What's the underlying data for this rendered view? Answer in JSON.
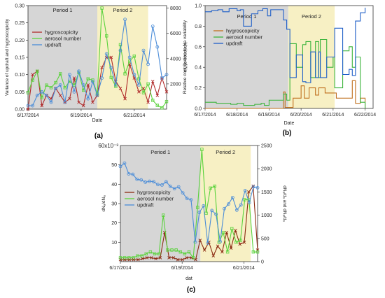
{
  "chart_data": [
    {
      "type": "line",
      "panel_label": "(a)",
      "xlabel": "Date",
      "ylabel": "Variance of updraft and hygroscopicity",
      "ylabel_right": "Variance of Na",
      "x_ticks": [
        "6/17/2014",
        "6/19/2014",
        "6/21/2014"
      ],
      "x_range": [
        0,
        30
      ],
      "x_tick_positions": [
        0,
        11.5,
        23
      ],
      "ylim": [
        0,
        0.3
      ],
      "y_ticks": [
        "0.00",
        "0.05",
        "0.10",
        "0.15",
        "0.20",
        "0.25",
        "0.30"
      ],
      "ylim_right": [
        0,
        8200
      ],
      "y_ticks_right": [
        "2000",
        "4000",
        "6000",
        "8000"
      ],
      "periods": [
        {
          "label": "Period 1",
          "start": 0,
          "end": 15,
          "color": "#d6d6d6"
        },
        {
          "label": "Period 2",
          "start": 15,
          "end": 26,
          "color": "#f7f0c4"
        }
      ],
      "legend_position": "left",
      "series": [
        {
          "name": "hygroscopicity",
          "color": "#b02a2a",
          "marker": "x",
          "axis": "left",
          "values": [
            0.0,
            0.1,
            0.11,
            0.01,
            0.04,
            0.03,
            0.06,
            0.04,
            0.02,
            0.03,
            0.09,
            0.02,
            0.01,
            0.07,
            0.02,
            0.04,
            0.12,
            0.15,
            0.15,
            0.08,
            0.06,
            0.03,
            0.13,
            0.09,
            0.05,
            0.06,
            0.02,
            0.08,
            0.04,
            0.09,
            0.05
          ]
        },
        {
          "name": "aerosol number",
          "color": "#5ad23c",
          "marker": "square",
          "axis": "right",
          "values": [
            1300,
            2300,
            3000,
            900,
            1900,
            1700,
            2100,
            2800,
            1700,
            2200,
            1900,
            2900,
            1500,
            2400,
            2300,
            1200,
            8000,
            5800,
            2500,
            1800,
            5100,
            2800,
            3800,
            4200,
            2400,
            1300,
            2000,
            700,
            300,
            100,
            600
          ]
        },
        {
          "name": "updraft",
          "color": "#4a8cd8",
          "marker": "circle",
          "axis": "left",
          "values": [
            0.01,
            0.01,
            0.04,
            0.05,
            0.04,
            0.02,
            0.06,
            0.07,
            0.02,
            0.1,
            0.05,
            0.11,
            0.07,
            0.03,
            0.08,
            0.04,
            0.09,
            0.16,
            0.12,
            0.07,
            0.17,
            0.26,
            0.15,
            0.1,
            0.07,
            0.17,
            0.13,
            0.24,
            0.18,
            0.09,
            0.1
          ]
        }
      ]
    },
    {
      "type": "line",
      "panel_label": "(b)",
      "xlabel": "Date",
      "ylabel": "Relative contribution to Na variability",
      "x_ticks": [
        "6/17/2014",
        "6/18/2014",
        "6/19/2014",
        "6/20/2014",
        "6/21/2014",
        "6/22/2014"
      ],
      "x_range": [
        0,
        5.25
      ],
      "x_tick_positions": [
        0,
        1,
        2,
        3,
        4,
        5
      ],
      "ylim": [
        0,
        1.0
      ],
      "y_ticks": [
        "0.0",
        "0.2",
        "0.4",
        "0.6",
        "0.8",
        "1.0"
      ],
      "periods": [
        {
          "label": "Period 1",
          "start": 0,
          "end": 2.6,
          "color": "#d6d6d6"
        },
        {
          "label": "Period 2",
          "start": 2.6,
          "end": 4.05,
          "color": "#f7f0c4"
        }
      ],
      "legend_position": "top-left",
      "series": [
        {
          "name": "hygroscopicity",
          "color": "#c0701e",
          "x": [
            0,
            2.3,
            2.45,
            2.5,
            2.75,
            3.0,
            3.1,
            3.25,
            3.45,
            3.55,
            3.75,
            4.1,
            4.3,
            4.6,
            4.7,
            4.85,
            5.0
          ],
          "values": [
            0.0,
            0.0,
            0.16,
            0.01,
            0.1,
            0.22,
            0.1,
            0.2,
            0.13,
            0.2,
            0.15,
            0.1,
            0.1,
            0.27,
            0.05,
            0.1,
            0.0
          ]
        },
        {
          "name": "aerosol number",
          "color": "#3cb43c",
          "x": [
            0,
            0.35,
            0.8,
            1.0,
            1.2,
            1.55,
            1.75,
            1.85,
            2.0,
            2.45,
            2.55,
            2.65,
            2.85,
            3.05,
            3.15,
            3.3,
            3.45,
            3.55,
            3.6,
            3.8,
            4.0,
            4.05,
            4.3,
            4.5,
            4.6,
            4.7,
            4.85,
            5.0
          ],
          "values": [
            0.06,
            0.05,
            0.04,
            0.05,
            0.03,
            0.04,
            0.05,
            0.03,
            0.08,
            0.14,
            0.08,
            0.63,
            0.4,
            0.62,
            0.65,
            0.3,
            0.65,
            0.3,
            0.67,
            0.4,
            0.5,
            0.2,
            0.56,
            0.6,
            0.4,
            0.5,
            0.06,
            0.0
          ]
        },
        {
          "name": "updraft",
          "color": "#1f5fc8",
          "x": [
            0,
            0.2,
            0.4,
            0.55,
            0.75,
            1.0,
            1.1,
            1.2,
            1.45,
            1.65,
            1.8,
            1.95,
            2.05,
            2.45,
            2.55,
            2.65,
            2.85,
            3.05,
            3.15,
            3.3,
            3.45,
            3.55,
            3.6,
            3.8,
            4.0,
            4.05,
            4.3,
            4.5,
            4.6,
            4.7,
            4.85,
            5.0
          ],
          "values": [
            0.94,
            0.95,
            0.96,
            0.94,
            0.97,
            0.95,
            0.96,
            0.8,
            0.92,
            0.95,
            0.97,
            0.9,
            0.96,
            0.86,
            0.77,
            0.3,
            0.52,
            0.26,
            0.25,
            0.55,
            0.3,
            0.55,
            0.3,
            0.5,
            0.5,
            0.78,
            0.33,
            0.38,
            0.32,
            0.85,
            0.93,
            0.98
          ]
        }
      ]
    },
    {
      "type": "line",
      "panel_label": "(c)",
      "xlabel": "dat",
      "ylabel": "dNₐ/dNₐ",
      "y_scale_label": "60x10⁻³",
      "ylabel_right": "dNₐ/dₐ and dNₐ/dₐ",
      "x_ticks": [
        "6/17/2014",
        "6/19/2014",
        "6/21/2014"
      ],
      "x_range": [
        0,
        30
      ],
      "x_tick_positions": [
        0,
        13.5,
        27
      ],
      "ylim": [
        0,
        60
      ],
      "y_ticks": [
        "10",
        "20",
        "30",
        "40",
        "50"
      ],
      "ylim_right": [
        0,
        2500
      ],
      "y_ticks_right": [
        "0",
        "500",
        "1000",
        "1500",
        "2000",
        "2500"
      ],
      "periods": [
        {
          "label": "Period 1",
          "start": 0,
          "end": 17.5,
          "color": "#d6d6d6"
        },
        {
          "label": "Period 2",
          "start": 17.5,
          "end": 28.5,
          "color": "#f7f0c4"
        }
      ],
      "legend_position": "left",
      "series": [
        {
          "name": "hygroscopicity",
          "color": "#8b2a12",
          "marker": "x",
          "axis": "left",
          "values": [
            1,
            1,
            1,
            1,
            1,
            1.5,
            2,
            2,
            1.5,
            2,
            15,
            2,
            2,
            1,
            1,
            2,
            2,
            1,
            11,
            6,
            10,
            3,
            8,
            5,
            15,
            7,
            16,
            9,
            10,
            36,
            39,
            6
          ]
        },
        {
          "name": "aerosol number",
          "color": "#5ad23c",
          "marker": "square",
          "axis": "left",
          "values": [
            2,
            2,
            2,
            2,
            3,
            3,
            4,
            5,
            4,
            4,
            24,
            6,
            6,
            6,
            5,
            4,
            5,
            2,
            28,
            58,
            25,
            38,
            39,
            10,
            15,
            5,
            17,
            10,
            11,
            32,
            32,
            5,
            5
          ]
        },
        {
          "name": "updraft",
          "color": "#4a8cd8",
          "marker": "circle",
          "axis": "right",
          "values": [
            2050,
            2120,
            1890,
            1880,
            1770,
            1760,
            1710,
            1730,
            1720,
            1660,
            1650,
            1720,
            1620,
            1570,
            1610,
            1480,
            1360,
            1330,
            420,
            1060,
            1200,
            400,
            1100,
            1020,
            430,
            1140,
            1240,
            1380,
            1110,
            1220,
            1530,
            1270,
            1610,
            1590
          ]
        }
      ]
    }
  ]
}
